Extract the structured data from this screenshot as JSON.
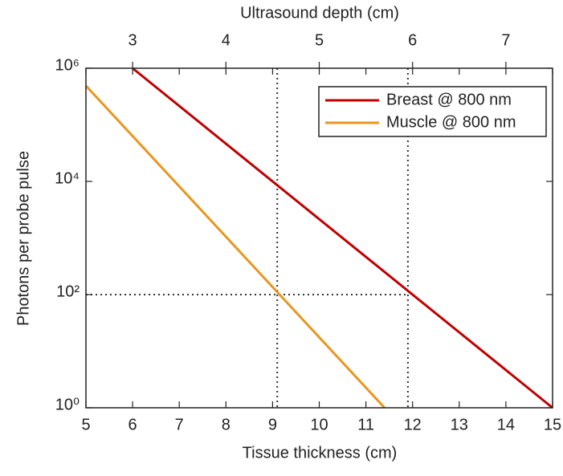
{
  "chart_data": {
    "type": "line",
    "xlabel": "Tissue thickness (cm)",
    "ylabel": "Photons per probe pulse",
    "x2label": "Ultrasound depth (cm)",
    "xlim": [
      5,
      15
    ],
    "xticks": [
      5,
      6,
      7,
      8,
      9,
      10,
      11,
      12,
      13,
      14,
      15
    ],
    "x2lim": [
      2.5,
      7.5
    ],
    "x2ticks": [
      3,
      4,
      5,
      6,
      7
    ],
    "ylim": [
      1,
      1000000
    ],
    "yscale": "log",
    "yticks": [
      {
        "value": 1,
        "label": "10⁰"
      },
      {
        "value": 100,
        "label": "10²"
      },
      {
        "value": 10000,
        "label": "10⁴"
      },
      {
        "value": 1000000,
        "label": "10⁶"
      }
    ],
    "legend": "upper right",
    "series": [
      {
        "name": "Breast @ 800 nm",
        "color": "#c00000",
        "x": [
          6,
          15
        ],
        "values": [
          1000000,
          1
        ]
      },
      {
        "name": "Muscle @ 800 nm",
        "color": "#e8961e",
        "x": [
          5,
          11.4
        ],
        "values": [
          490000,
          1
        ]
      }
    ],
    "vlines": [
      9.1,
      11.9
    ],
    "hline": {
      "y": 100,
      "xlim": [
        5,
        11.9
      ]
    }
  }
}
